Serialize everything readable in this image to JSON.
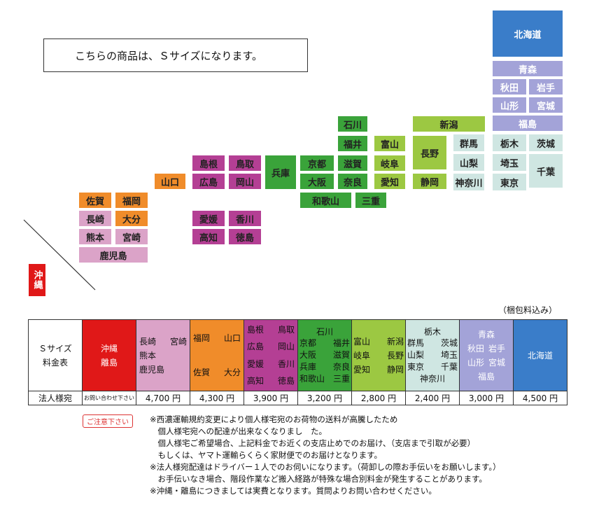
{
  "info_box": "こちらの商品は、Ｓサイズになります。",
  "colors": {
    "red": "#e01818",
    "pink": "#dba3c8",
    "orange": "#f08c2a",
    "purple": "#b43f94",
    "green": "#3aa33a",
    "lightgreen": "#9cc842",
    "teal": "#cfe6e2",
    "lavender": "#a3a3d8",
    "blue": "#3a7dc9"
  },
  "map": {
    "okinawa": "沖縄",
    "hokkaido": "北海道",
    "aomori": "青森",
    "akita": "秋田",
    "iwate": "岩手",
    "yamagata": "山形",
    "miyagi": "宮城",
    "fukushima": "福島",
    "niigata": "新潟",
    "gunma": "群馬",
    "tochigi": "栃木",
    "ibaraki": "茨城",
    "yamanashi": "山梨",
    "saitama": "埼玉",
    "chiba": "千葉",
    "kanagawa": "神奈川",
    "tokyo": "東京",
    "nagano": "長野",
    "shizuoka": "静岡",
    "toyama": "富山",
    "gifu": "岐阜",
    "aichi": "愛知",
    "ishikawa": "石川",
    "fukui": "福井",
    "shiga": "滋賀",
    "nara": "奈良",
    "kyoto": "京都",
    "osaka": "大阪",
    "wakayama": "和歌山",
    "mie": "三重",
    "hyogo": "兵庫",
    "shimane": "島根",
    "tottori": "鳥取",
    "hiroshima": "広島",
    "okayama": "岡山",
    "yamaguchi": "山口",
    "ehime": "愛媛",
    "kagawa": "香川",
    "kochi": "高知",
    "tokushima": "徳島",
    "saga": "佐賀",
    "fukuoka": "福岡",
    "nagasaki": "長崎",
    "oita": "大分",
    "kumamoto": "熊本",
    "miyazaki": "宮崎",
    "kagoshima": "鹿児島"
  },
  "packing_note": "（梱包料込み）",
  "table": {
    "label_l1": "Ｓサイズ",
    "label_l2": "料金表",
    "row_label": "法人様宛",
    "okinawa_l1": "沖縄",
    "okinawa_l2": "離島",
    "okinawa_price": "お問い合わせ下さい",
    "kyushu": {
      "a": "長崎",
      "b": "宮崎",
      "c": "熊本",
      "d": "鹿児島",
      "price": "4,700 円"
    },
    "n_kyushu": {
      "a": "福岡",
      "b": "山口",
      "c": "佐賀",
      "d": "大分",
      "price": "4,300 円"
    },
    "shikoku": {
      "a": "島根",
      "b": "鳥取",
      "c": "広島",
      "d": "岡山",
      "e": "愛媛",
      "f": "香川",
      "g": "高知",
      "h": "徳島",
      "price": "3,900 円"
    },
    "kansai": {
      "top": "石川",
      "a": "京都",
      "b": "福井",
      "c": "大阪",
      "d": "滋賀",
      "e": "兵庫",
      "f": "奈良",
      "g": "和歌山",
      "h": "三重",
      "price": "3,200 円"
    },
    "chubu": {
      "a": "富山",
      "b": "新潟",
      "c": "岐阜",
      "d": "長野",
      "e": "愛知",
      "f": "静岡",
      "price": "2,800 円"
    },
    "kanto": {
      "top": "栃木",
      "a": "群馬",
      "b": "茨城",
      "c": "山梨",
      "d": "埼玉",
      "e": "東京",
      "f": "千葉",
      "g": "神奈川",
      "price": "2,400 円"
    },
    "tohoku": {
      "top": "青森",
      "a": "秋田",
      "b": "岩手",
      "c": "山形",
      "d": "宮城",
      "e": "福島",
      "price": "3,000 円"
    },
    "hokkaido": {
      "name": "北海道",
      "price": "4,500 円"
    }
  },
  "notice_badge": "ご注意下さい",
  "notes": [
    "※西濃運輸規約変更により個人様宅宛のお荷物の送料が高騰したため",
    "　個人様宅宛への配達が出来なくなりまし　た。",
    "　個人様宅ご希望場合、上記料金でお近くの支店止めでのお届け、（支店まで引取が必要）",
    "　もしくは、ヤマト運輸らくらく家財便でのお届けとなります。",
    "※法人様宛配達はドライバー１人でのお伺いになります。（荷卸しの際お手伝いをお願いします。）",
    "　お手伝いなき場合、階段作業など搬入経路が特殊な場合別料金が発生することがあります。",
    "※沖縄・離島につきましては実費となります。質問よりお問い合わせください。"
  ]
}
